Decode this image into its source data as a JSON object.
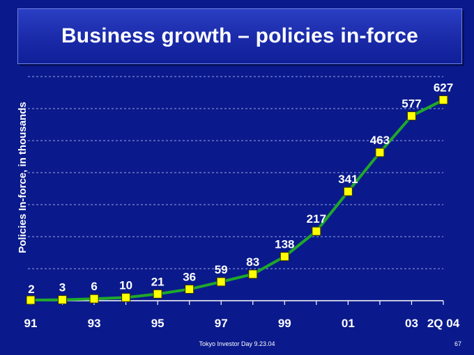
{
  "slide": {
    "title": "Business growth – policies in-force",
    "footer": "Tokyo Investor Day 9.23.04",
    "page_number": "67"
  },
  "colors": {
    "background": "#0a1a8c",
    "line": "#1fa82a",
    "marker": "#ffff00",
    "text": "#ffffff",
    "grid": "#9aa6e6"
  },
  "chart_data": {
    "type": "line",
    "title": "",
    "ylabel": "Policies In-force, in thousands",
    "xlabel": "",
    "x": [
      "91",
      "92",
      "93",
      "94",
      "95",
      "96",
      "97",
      "98",
      "99",
      "00",
      "01",
      "02",
      "03",
      "2Q 04"
    ],
    "x_tick_labels": [
      "91",
      "",
      "93",
      "",
      "95",
      "",
      "97",
      "",
      "99",
      "",
      "01",
      "",
      "03",
      "2Q 04"
    ],
    "series": [
      {
        "values": [
          2,
          3,
          6,
          10,
          21,
          36,
          59,
          83,
          138,
          217,
          341,
          463,
          577,
          627
        ]
      }
    ],
    "ylim": [
      0,
      700
    ],
    "grid": true,
    "legend": "none"
  }
}
